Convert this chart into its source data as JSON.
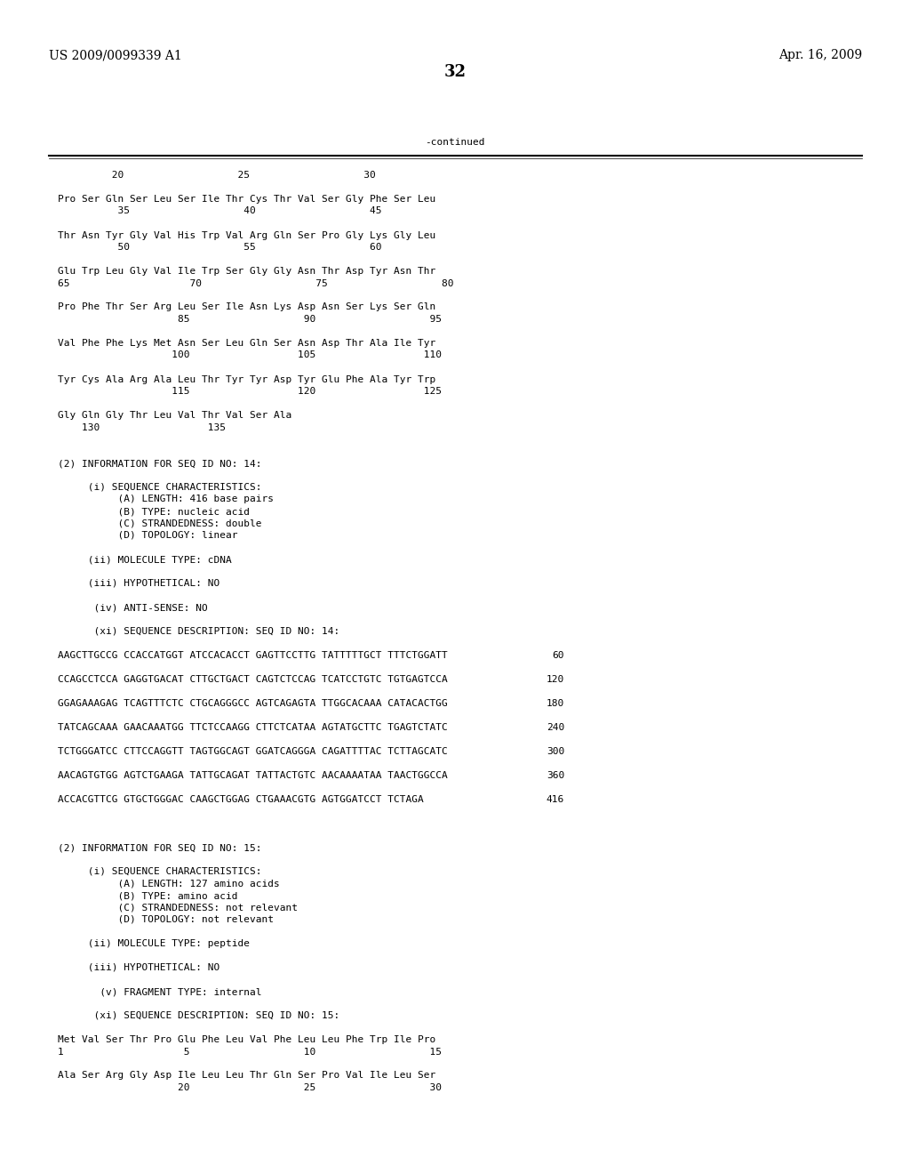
{
  "header_left": "US 2009/0099339 A1",
  "header_right": "Apr. 16, 2009",
  "page_number": "32",
  "continued_label": "-continued",
  "background_color": "#ffffff",
  "text_color": "#000000",
  "content_lines": [
    "         20                   25                   30",
    "",
    "Pro Ser Gln Ser Leu Ser Ile Thr Cys Thr Val Ser Gly Phe Ser Leu",
    "          35                   40                   45",
    "",
    "Thr Asn Tyr Gly Val His Trp Val Arg Gln Ser Pro Gly Lys Gly Leu",
    "          50                   55                   60",
    "",
    "Glu Trp Leu Gly Val Ile Trp Ser Gly Gly Asn Thr Asp Tyr Asn Thr",
    "65                    70                   75                   80",
    "",
    "Pro Phe Thr Ser Arg Leu Ser Ile Asn Lys Asp Asn Ser Lys Ser Gln",
    "                    85                   90                   95",
    "",
    "Val Phe Phe Lys Met Asn Ser Leu Gln Ser Asn Asp Thr Ala Ile Tyr",
    "                   100                  105                  110",
    "",
    "Tyr Cys Ala Arg Ala Leu Thr Tyr Tyr Asp Tyr Glu Phe Ala Tyr Trp",
    "                   115                  120                  125",
    "",
    "Gly Gln Gly Thr Leu Val Thr Val Ser Ala",
    "    130                  135",
    "",
    "",
    "(2) INFORMATION FOR SEQ ID NO: 14:",
    "",
    "     (i) SEQUENCE CHARACTERISTICS:",
    "          (A) LENGTH: 416 base pairs",
    "          (B) TYPE: nucleic acid",
    "          (C) STRANDEDNESS: double",
    "          (D) TOPOLOGY: linear",
    "",
    "     (ii) MOLECULE TYPE: cDNA",
    "",
    "     (iii) HYPOTHETICAL: NO",
    "",
    "      (iv) ANTI-SENSE: NO",
    "",
    "      (xi) SEQUENCE DESCRIPTION: SEQ ID NO: 14:",
    ""
  ],
  "dna_lines": [
    {
      "seq": "AAGCTTGCCG CCACCATGGT ATCCACACCT GAGTTCCTTG TATTTTTGCT TTTCTGGATT",
      "num": "60"
    },
    {
      "seq": "CCAGCCTCCA GAGGTGACAT CTTGCTGACT CAGTCTCCAG TCATCCTGTC TGTGAGTCCA",
      "num": "120"
    },
    {
      "seq": "GGAGAAAGAG TCAGTTTCTC CTGCAGGGCC AGTCAGAGTA TTGGCACAAA CATACACTGG",
      "num": "180"
    },
    {
      "seq": "TATCAGCAAA GAACAAATGG TTCTCCAAGG CTTCTCATAA AGTATGCTTC TGAGTCTATC",
      "num": "240"
    },
    {
      "seq": "TCTGGGATCC CTTCCAGGTT TAGTGGCAGT GGATCAGGGA CAGATTTTAC TCTTAGCATC",
      "num": "300"
    },
    {
      "seq": "AACAGTGTGG AGTCTGAAGA TATTGCAGAT TATTACTGTC AACAAAATAA TAACTGGCCA",
      "num": "360"
    },
    {
      "seq": "ACCACGTTCG GTGCTGGGAC CAAGCTGGAG CTGAAACGTG AGTGGATCCT TCTAGA",
      "num": "416"
    }
  ],
  "content_lines2": [
    "",
    "",
    "(2) INFORMATION FOR SEQ ID NO: 15:",
    "",
    "     (i) SEQUENCE CHARACTERISTICS:",
    "          (A) LENGTH: 127 amino acids",
    "          (B) TYPE: amino acid",
    "          (C) STRANDEDNESS: not relevant",
    "          (D) TOPOLOGY: not relevant",
    "",
    "     (ii) MOLECULE TYPE: peptide",
    "",
    "     (iii) HYPOTHETICAL: NO",
    "",
    "       (v) FRAGMENT TYPE: internal",
    "",
    "      (xi) SEQUENCE DESCRIPTION: SEQ ID NO: 15:",
    "",
    "Met Val Ser Thr Pro Glu Phe Leu Val Phe Leu Leu Phe Trp Ile Pro",
    "1                    5                   10                   15",
    "",
    "Ala Ser Arg Gly Asp Ile Leu Leu Thr Gln Ser Pro Val Ile Leu Ser",
    "                    20                   25                   30"
  ]
}
